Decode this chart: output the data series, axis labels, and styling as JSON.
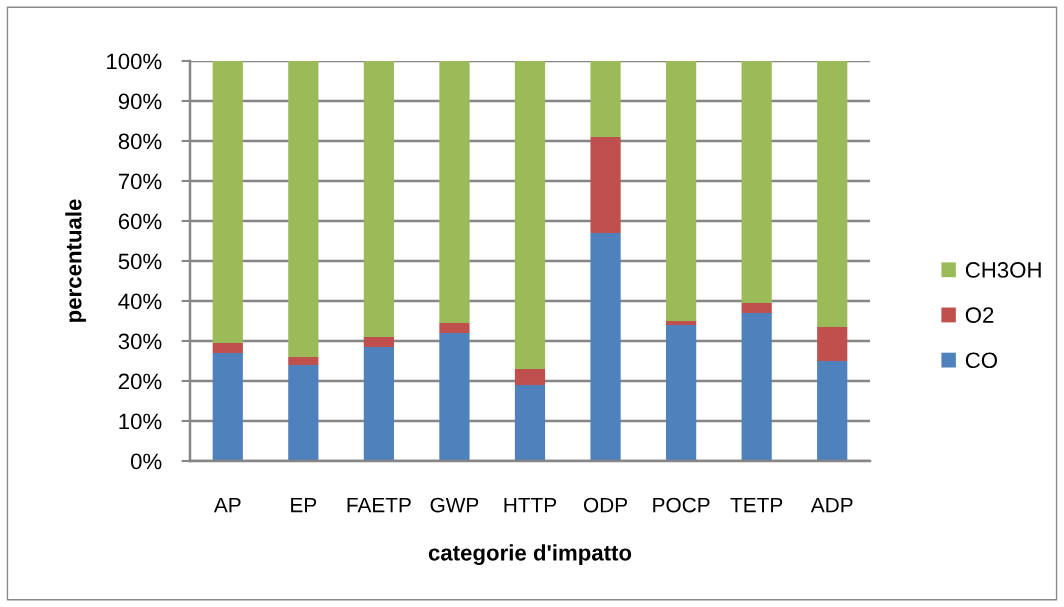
{
  "chart_data": {
    "type": "bar",
    "stacked": true,
    "xlabel": "categorie d'impatto",
    "ylabel": "percentuale",
    "categories": [
      "AP",
      "EP",
      "FAETP",
      "GWP",
      "HTTP",
      "ODP",
      "POCP",
      "TETP",
      "ADP"
    ],
    "series": [
      {
        "name": "CO",
        "color": "#4f81bd",
        "values": [
          27,
          24,
          28.5,
          32,
          19,
          57,
          34,
          37,
          25
        ]
      },
      {
        "name": "O2",
        "color": "#c0504d",
        "values": [
          2.5,
          2,
          2.5,
          2.5,
          4,
          24,
          1,
          2.5,
          8.5
        ]
      },
      {
        "name": "CH3OH",
        "color": "#9bbb59",
        "values": [
          70.5,
          74,
          69,
          65.5,
          77,
          19,
          65,
          60.5,
          66.5
        ]
      }
    ],
    "ylim": [
      0,
      100
    ],
    "yticks": [
      {
        "value": 0,
        "label": "0%"
      },
      {
        "value": 10,
        "label": "10%"
      },
      {
        "value": 20,
        "label": "20%"
      },
      {
        "value": 30,
        "label": "30%"
      },
      {
        "value": 40,
        "label": "40%"
      },
      {
        "value": 50,
        "label": "50%"
      },
      {
        "value": 60,
        "label": "60%"
      },
      {
        "value": 70,
        "label": "70%"
      },
      {
        "value": 80,
        "label": "80%"
      },
      {
        "value": 90,
        "label": "90%"
      },
      {
        "value": 100,
        "label": "100%"
      }
    ],
    "grid": "y",
    "legend": "right"
  }
}
